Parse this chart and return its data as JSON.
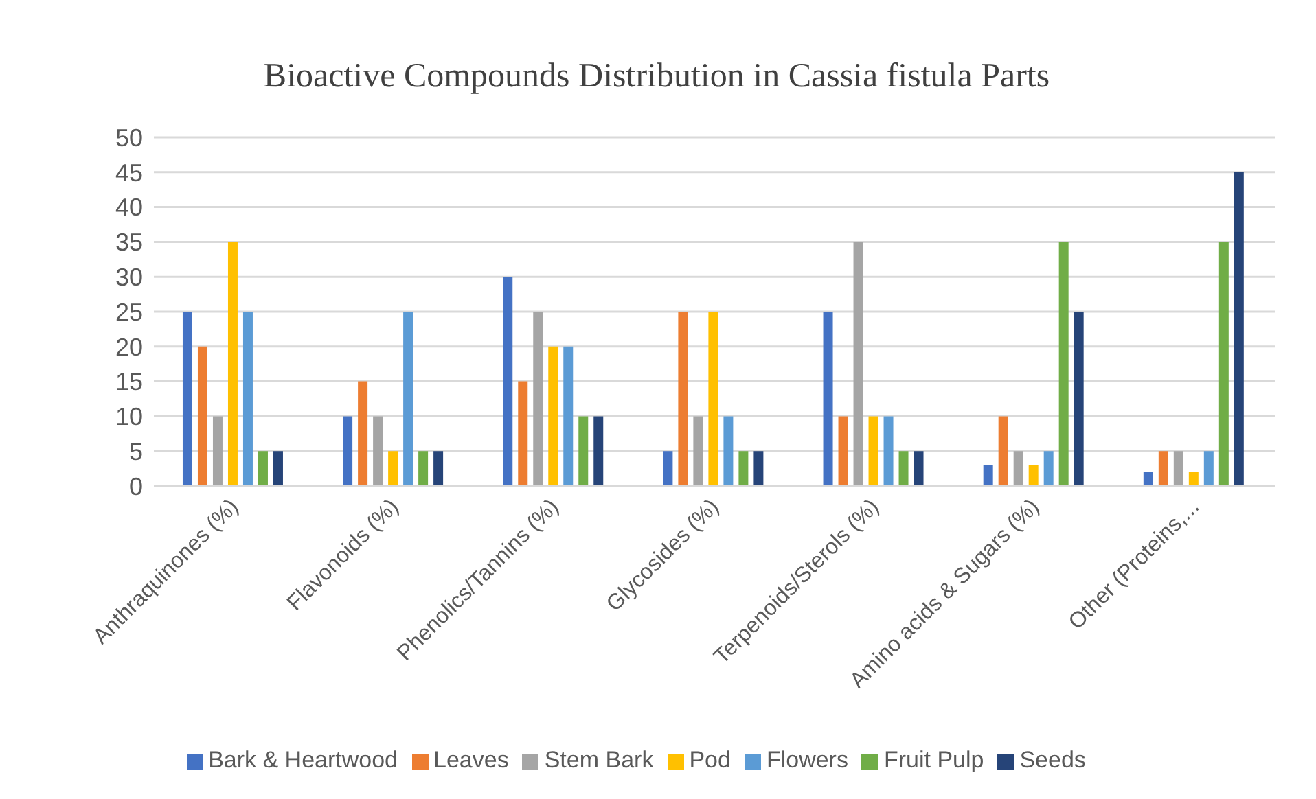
{
  "chart_data": {
    "type": "bar",
    "title": "Bioactive Compounds Distribution in Cassia fistula Parts",
    "categories": [
      "Anthraquinones (%)",
      "Flavonoids (%)",
      "Phenolics/Tannins (%)",
      "Glycosides (%)",
      "Terpenoids/Sterols (%)",
      "Amino acids & Sugars (%)",
      "Other (Proteins,..."
    ],
    "series": [
      {
        "name": "Bark & Heartwood",
        "color": "#4472c4",
        "values": [
          25,
          10,
          30,
          5,
          25,
          3,
          2
        ]
      },
      {
        "name": "Leaves",
        "color": "#ed7d31",
        "values": [
          20,
          15,
          15,
          25,
          10,
          10,
          5
        ]
      },
      {
        "name": "Stem Bark",
        "color": "#a5a5a5",
        "values": [
          10,
          10,
          25,
          10,
          35,
          5,
          5
        ]
      },
      {
        "name": "Pod",
        "color": "#ffc000",
        "values": [
          35,
          5,
          20,
          25,
          10,
          3,
          2
        ]
      },
      {
        "name": "Flowers",
        "color": "#5b9bd5",
        "values": [
          25,
          25,
          20,
          10,
          10,
          5,
          5
        ]
      },
      {
        "name": "Fruit Pulp",
        "color": "#70ad47",
        "values": [
          5,
          5,
          10,
          5,
          5,
          35,
          35
        ]
      },
      {
        "name": "Seeds",
        "color": "#264478",
        "values": [
          5,
          5,
          10,
          5,
          5,
          25,
          45
        ]
      }
    ],
    "ylim": [
      0,
      50
    ],
    "yticks": [
      0,
      5,
      10,
      15,
      20,
      25,
      30,
      35,
      40,
      45,
      50
    ],
    "grid": "y",
    "legend": "bottom"
  }
}
